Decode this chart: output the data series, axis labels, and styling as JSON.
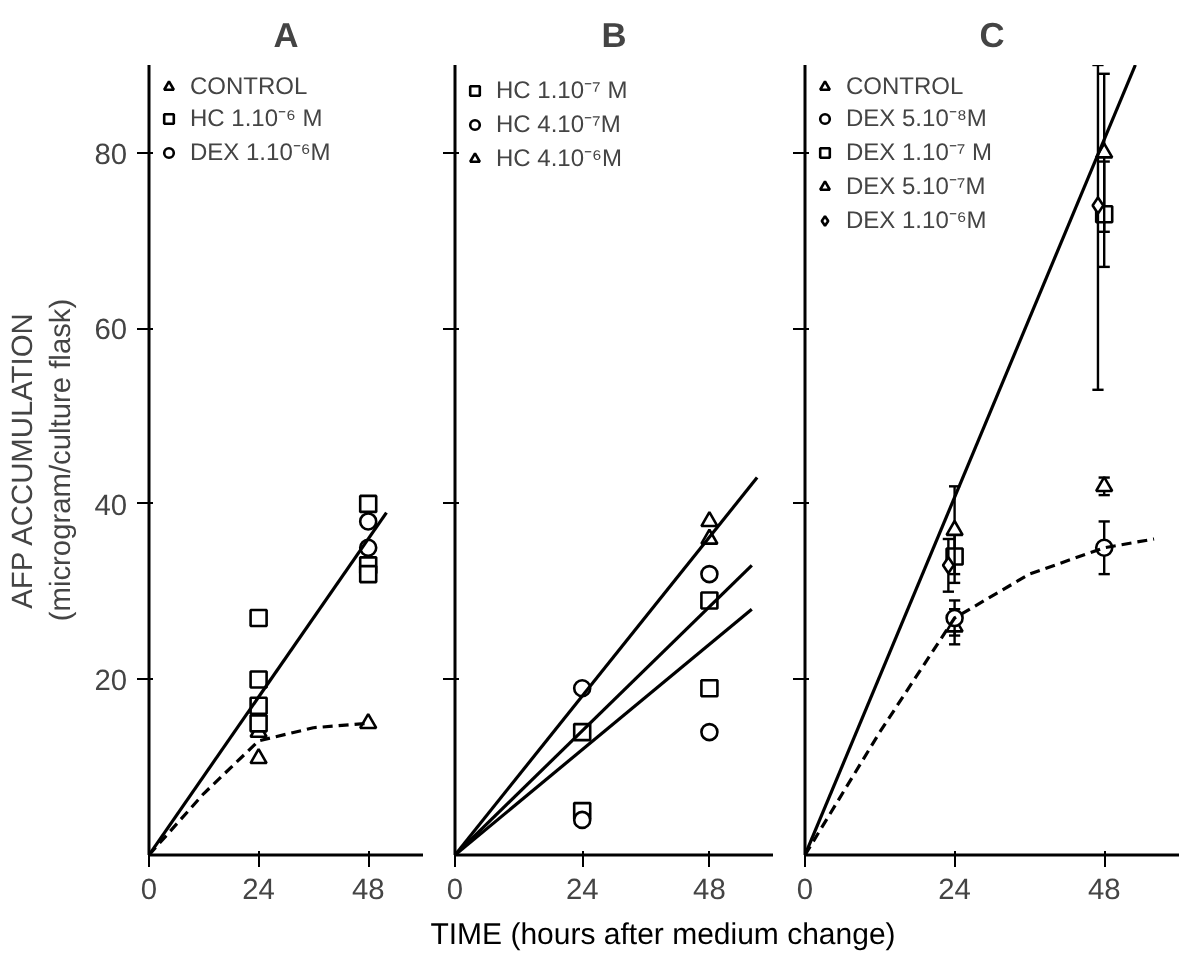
{
  "chart_data": [
    {
      "type": "scatter",
      "title": "A",
      "ylabel": "AFP ACCUMULATION\n(microgram/culture flask)",
      "xlim": [
        0,
        60
      ],
      "ylim": [
        0,
        90
      ],
      "xticks": [
        0,
        24,
        48
      ],
      "yticks": [
        20,
        40,
        60,
        80
      ],
      "grid": false,
      "legend": "top left",
      "series": [
        {
          "name": "CONTROL",
          "color": "#000000",
          "marker": "triangle",
          "x": [
            24,
            24,
            48
          ],
          "values": [
            14,
            11,
            15
          ]
        },
        {
          "name": "HC 1.10⁻⁶ M",
          "color": "#000000",
          "marker": "square",
          "x": [
            24,
            24,
            24,
            24,
            48,
            48,
            48
          ],
          "values": [
            27,
            20,
            17,
            15,
            40,
            33,
            32
          ]
        },
        {
          "name": "DEX 1.10⁻⁶M",
          "color": "#000000",
          "marker": "circle",
          "x": [
            48,
            48
          ],
          "values": [
            38,
            35
          ]
        },
        {
          "type": "line",
          "color": "#000000",
          "line_style": "solid",
          "x": [
            0,
            52
          ],
          "values": [
            0,
            39
          ]
        },
        {
          "type": "line",
          "color": "#000000",
          "line_style": "dashed",
          "x": [
            0,
            12,
            24,
            36,
            48
          ],
          "values": [
            0,
            7,
            13,
            14.5,
            15
          ]
        }
      ]
    },
    {
      "type": "scatter",
      "title": "B",
      "xlabel": "TIME (hours after medium change)",
      "xlim": [
        0,
        60
      ],
      "ylim": [
        0,
        90
      ],
      "xticks": [
        0,
        24,
        48
      ],
      "yticks": [
        20,
        40,
        60,
        80
      ],
      "grid": false,
      "legend": "top left",
      "tick_labels": "x",
      "series": [
        {
          "name": "HC 1.10⁻⁷ M",
          "color": "#000000",
          "marker": "square",
          "x": [
            24,
            24,
            48,
            48
          ],
          "values": [
            14,
            5,
            29,
            19
          ]
        },
        {
          "name": "HC 4.10⁻⁷M",
          "color": "#000000",
          "marker": "circle",
          "x": [
            24,
            24,
            48,
            48
          ],
          "values": [
            19,
            4,
            32,
            14
          ]
        },
        {
          "name": "HC 4.10⁻⁶M",
          "color": "#000000",
          "marker": "triangle",
          "x": [
            48,
            48
          ],
          "values": [
            38,
            36
          ]
        },
        {
          "type": "line",
          "color": "#000000",
          "line_style": "solid",
          "x": [
            0,
            57
          ],
          "values": [
            0,
            43
          ]
        },
        {
          "type": "line",
          "color": "#000000",
          "line_style": "solid",
          "x": [
            0,
            56
          ],
          "values": [
            0,
            33
          ]
        },
        {
          "type": "line",
          "color": "#000000",
          "line_style": "solid",
          "x": [
            0,
            56
          ],
          "values": [
            0,
            28
          ]
        }
      ]
    },
    {
      "type": "scatter",
      "title": "C",
      "xlim": [
        0,
        60
      ],
      "ylim": [
        0,
        90
      ],
      "xticks": [
        0,
        24,
        48
      ],
      "yticks": [
        20,
        40,
        60,
        80
      ],
      "grid": false,
      "legend": "top left",
      "tick_labels": "x",
      "series": [
        {
          "name": "CONTROL",
          "color": "#000000",
          "marker": "triangle",
          "x": [
            24,
            48
          ],
          "values": [
            26,
            42
          ],
          "errors": [
            2,
            1
          ]
        },
        {
          "name": "DEX 5.10⁻⁸M",
          "color": "#000000",
          "marker": "circle",
          "x": [
            24,
            48
          ],
          "values": [
            27,
            35
          ],
          "errors": [
            2,
            3
          ]
        },
        {
          "name": "DEX 1.10⁻⁷ M",
          "color": "#000000",
          "marker": "square",
          "x": [
            24,
            48
          ],
          "values": [
            34,
            73
          ],
          "errors": [
            3,
            6
          ]
        },
        {
          "name": "DEX 5.10⁻⁷M",
          "color": "#000000",
          "marker": "triangle",
          "x": [
            24,
            48
          ],
          "values": [
            37,
            80
          ],
          "errors": [
            5,
            9
          ]
        },
        {
          "name": "DEX 1.10⁻⁶M",
          "color": "#000000",
          "marker": "diamond",
          "x": [
            23,
            47
          ],
          "values": [
            33,
            74
          ],
          "errors": [
            3,
            [
              53,
              90
            ]
          ]
        },
        {
          "type": "line",
          "color": "#000000",
          "line_style": "solid",
          "x": [
            0,
            53
          ],
          "values": [
            0,
            90
          ]
        },
        {
          "type": "line",
          "color": "#000000",
          "line_style": "dashed",
          "x": [
            0,
            12,
            24,
            36,
            48,
            56
          ],
          "values": [
            0,
            14,
            27,
            32,
            35,
            36
          ]
        }
      ]
    }
  ]
}
